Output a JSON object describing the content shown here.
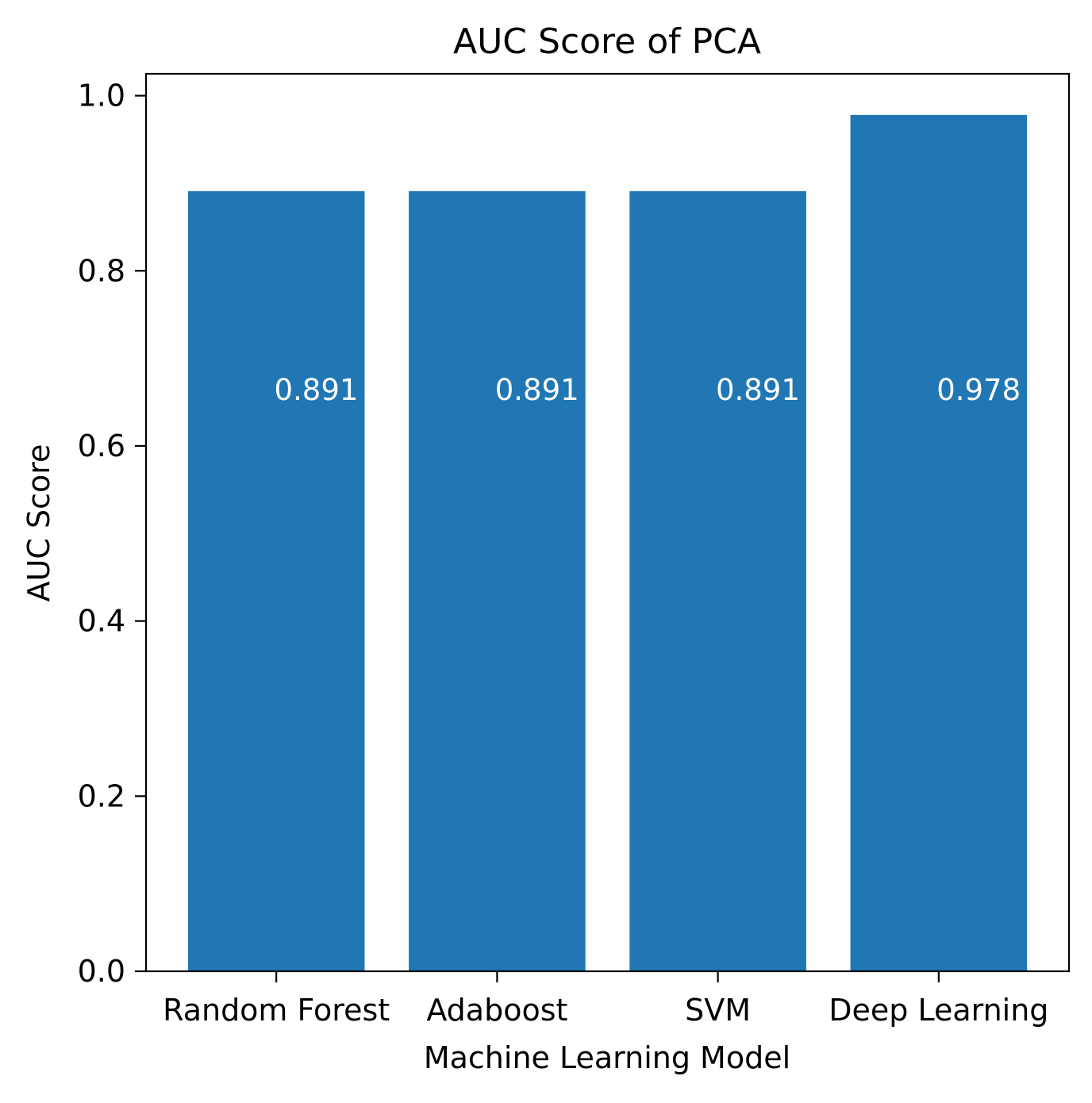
{
  "chart_data": {
    "type": "bar",
    "title": "AUC Score of PCA",
    "xlabel": "Machine Learning Model",
    "ylabel": "AUC Score",
    "categories": [
      "Random Forest",
      "Adaboost",
      "SVM",
      "Deep Learning"
    ],
    "values": [
      0.891,
      0.891,
      0.891,
      0.978
    ],
    "data_labels": [
      "0.891",
      "0.891",
      "0.891",
      "0.978"
    ],
    "ylim": [
      0,
      1.025
    ],
    "yticks": [
      0.0,
      0.2,
      0.4,
      0.6,
      0.8,
      1.0
    ],
    "ytick_labels": [
      "0.0",
      "0.2",
      "0.4",
      "0.6",
      "0.8",
      "1.0"
    ],
    "grid": false,
    "colors": {
      "bar": "#2077b4",
      "data_label": "#ffffff",
      "axis": "#000000"
    }
  }
}
